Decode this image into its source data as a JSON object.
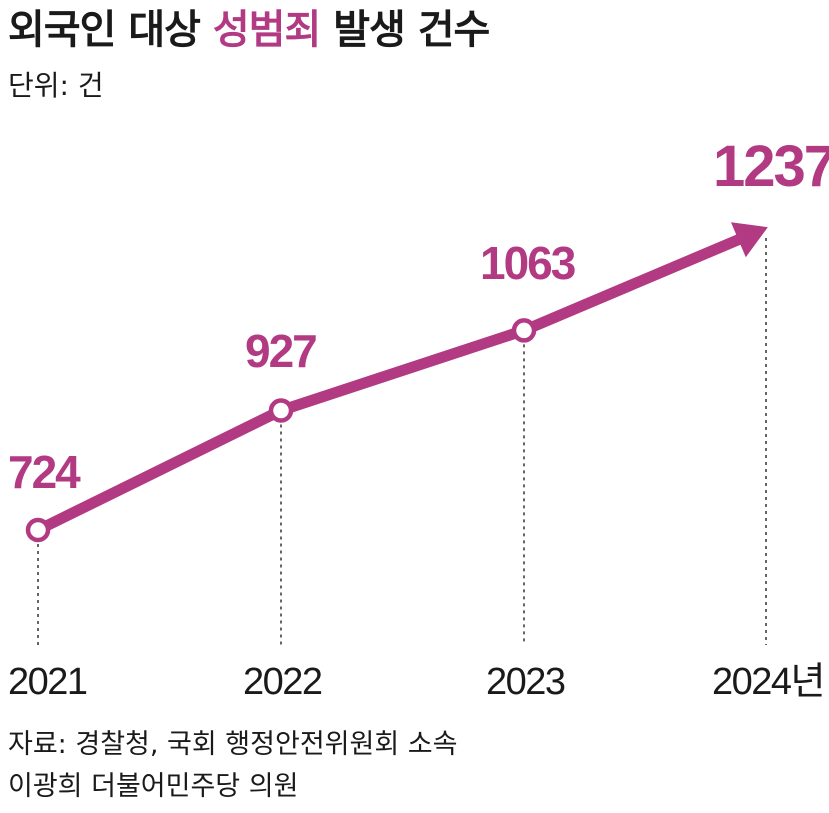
{
  "title": {
    "prefix": "외국인 대상 ",
    "highlight": "성범죄",
    "suffix": " 발생 건수"
  },
  "unit_label": "단위: 건",
  "source": {
    "line1": "자료: 경찰청, 국회 행정안전위원회 소속",
    "line2": "이광희 더불어민주당 의원"
  },
  "colors": {
    "accent": "#b23a82",
    "text": "#1a1a1a",
    "guide": "#333333"
  },
  "chart_data": {
    "type": "line",
    "x": [
      "2021",
      "2022",
      "2023",
      "2024"
    ],
    "x_tick_labels": [
      "2021",
      "2022",
      "2023",
      "2024년"
    ],
    "values": [
      724,
      927,
      1063,
      1237
    ],
    "data_labels": [
      "724",
      "927",
      "1063",
      "1237"
    ],
    "title": "외국인 대상 성범죄 발생 건수",
    "unit": "단위: 건",
    "last_point_marker": "arrow",
    "grid": false,
    "legend": "none"
  }
}
